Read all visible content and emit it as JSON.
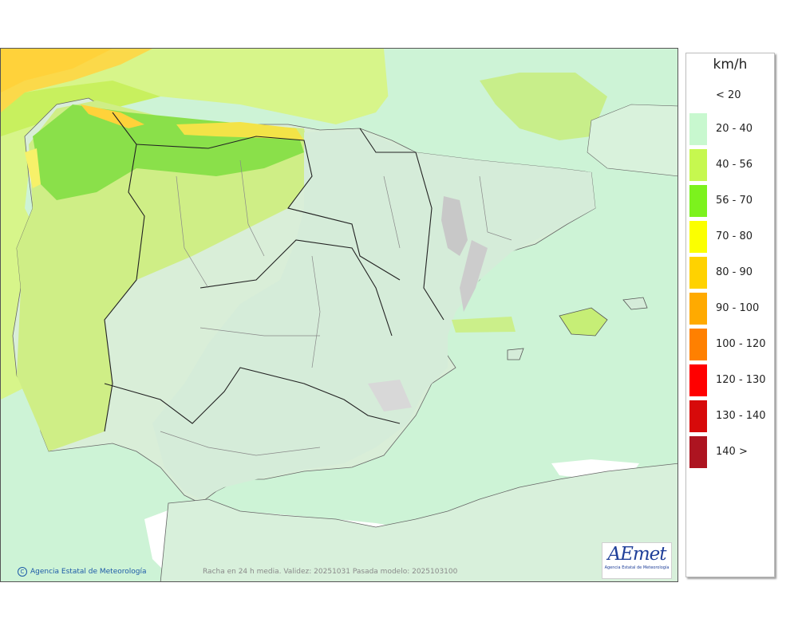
{
  "map": {
    "caption": "Racha en 24 h media. Validez: 20251031 Pasada modelo: 2025103100",
    "credit": "Agencia Estatal de Meteorología",
    "credit_symbol": "C",
    "logo_text": "AEmet",
    "logo_subtext": "Agencia Estatal de Meteorología"
  },
  "legend": {
    "unit": "km/h",
    "classes": [
      {
        "label": "< 20",
        "color": "#ffffff"
      },
      {
        "label": "20 - 40",
        "color": "#c8f8cf"
      },
      {
        "label": "40 - 56",
        "color": "#c6f84f"
      },
      {
        "label": "56 - 70",
        "color": "#7cf21d"
      },
      {
        "label": "70 - 80",
        "color": "#fbff00"
      },
      {
        "label": "80 - 90",
        "color": "#ffd200"
      },
      {
        "label": "90 - 100",
        "color": "#ffaa00"
      },
      {
        "label": "100 - 120",
        "color": "#ff8000"
      },
      {
        "label": "120 - 130",
        "color": "#ff0000"
      },
      {
        "label": "130 - 140",
        "color": "#d70a0a"
      },
      {
        "label": "140 >",
        "color": "#ad1420"
      }
    ]
  }
}
